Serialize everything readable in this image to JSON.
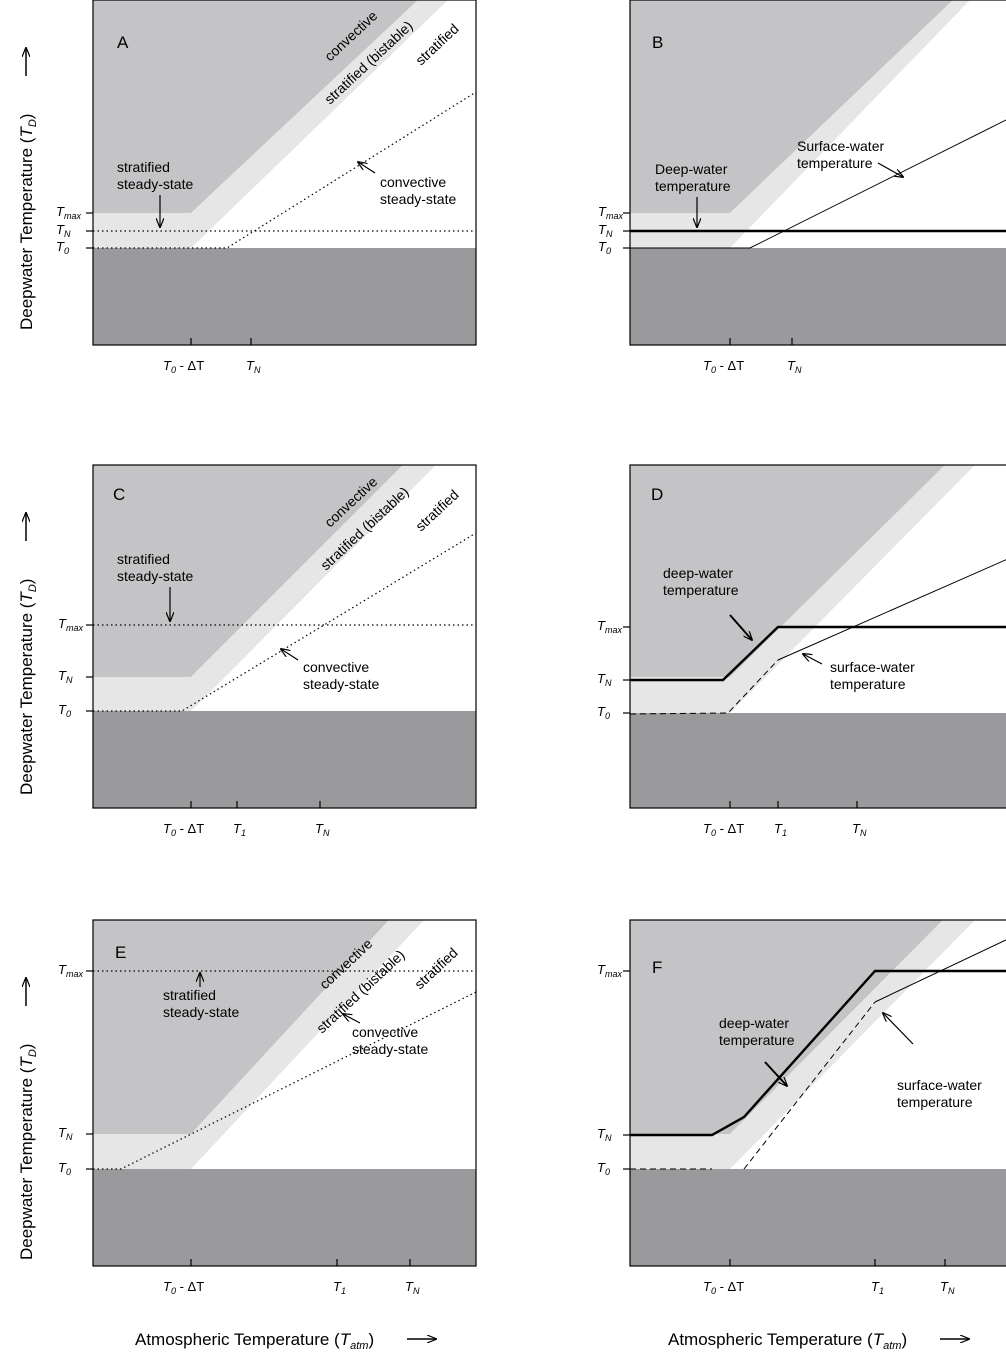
{
  "panels": [
    {
      "id": "A",
      "letter": "A",
      "regions": {
        "convective": "convective",
        "bistable": "stratified (bistable)",
        "stratified": "stratified"
      },
      "annotations": [
        "stratified",
        "steady-state",
        "convective",
        "steady-state"
      ],
      "yticks": [
        "max",
        "N",
        "0"
      ],
      "xticks": [
        {
          "label": "T",
          "sub": "0",
          "suffix": " - ΔT"
        },
        {
          "label": "T",
          "sub": "N"
        }
      ]
    },
    {
      "id": "B",
      "letter": "B",
      "annotations": [
        "Surface-water",
        "temperature",
        "Deep-water",
        "temperature"
      ],
      "yticks": [
        "max",
        "N",
        "0"
      ],
      "xticks": [
        {
          "label": "T",
          "sub": "0",
          "suffix": " - ΔT"
        },
        {
          "label": "T",
          "sub": "N"
        }
      ]
    },
    {
      "id": "C",
      "letter": "C",
      "regions": {
        "convective": "convective",
        "bistable": "stratified (bistable)",
        "stratified": "stratified"
      },
      "annotations": [
        "stratified",
        "steady-state",
        "convective",
        "steady-state"
      ],
      "yticks": [
        "max",
        "N",
        "0"
      ],
      "xticks": [
        {
          "label": "T",
          "sub": "0",
          "suffix": " - ΔT"
        },
        {
          "label": "T",
          "sub": "1"
        },
        {
          "label": "T",
          "sub": "N"
        }
      ]
    },
    {
      "id": "D",
      "letter": "D",
      "annotations": [
        "deep-water",
        "temperature",
        "surface-water",
        "temperature"
      ],
      "yticks": [
        "max",
        "N",
        "0"
      ],
      "xticks": [
        {
          "label": "T",
          "sub": "0",
          "suffix": " - ΔT"
        },
        {
          "label": "T",
          "sub": "1"
        },
        {
          "label": "T",
          "sub": "N"
        }
      ]
    },
    {
      "id": "E",
      "letter": "E",
      "regions": {
        "convective": "convective",
        "bistable": "stratified (bistable)",
        "stratified": "stratified"
      },
      "annotations": [
        "stratified",
        "steady-state",
        "convective",
        "steady-state"
      ],
      "yticks": [
        "max",
        "N",
        "0"
      ],
      "xticks": [
        {
          "label": "T",
          "sub": "0",
          "suffix": " - ΔT"
        },
        {
          "label": "T",
          "sub": "1"
        },
        {
          "label": "T",
          "sub": "N"
        }
      ]
    },
    {
      "id": "F",
      "letter": "F",
      "annotations": [
        "deep-water",
        "temperature",
        "surface-water",
        "temperature"
      ],
      "yticks": [
        "max",
        "N",
        "0"
      ],
      "xticks": [
        {
          "label": "T",
          "sub": "0",
          "suffix": " - ΔT"
        },
        {
          "label": "T",
          "sub": "1"
        },
        {
          "label": "T",
          "sub": "N"
        }
      ]
    }
  ],
  "axes": {
    "ylabel_main": "Deepwater Temperature (",
    "ylabel_sym": "T",
    "ylabel_sub": "D",
    "ylabel_close": ")",
    "xlabel_main": "Atmospheric Temperature (",
    "xlabel_sym": "T",
    "xlabel_sub": "atm",
    "xlabel_close": ")"
  },
  "colors": {
    "convective_region": "#c4c4c6",
    "bistable_region": "#e6e6e7",
    "stratified_region": "#ffffff",
    "floor": "#9a9a9d",
    "line": "#000000"
  }
}
